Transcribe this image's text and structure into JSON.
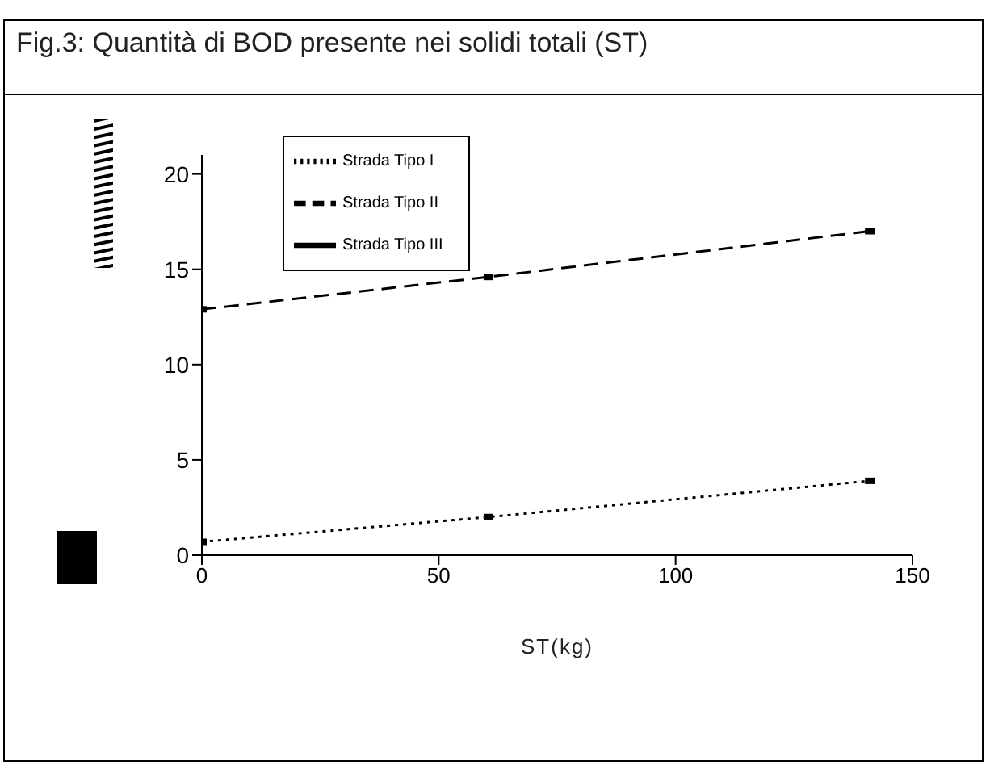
{
  "chart_data": {
    "type": "line",
    "title": "Fig.3: Quantità di BOD presente nei solidi totali (ST)",
    "xlabel": "ST(kg)",
    "x": [
      0,
      60.5,
      141
    ],
    "series": [
      {
        "name": "Strada Tipo I",
        "color": "#000000",
        "line_style": "dotted",
        "values": [
          0.7,
          2.0,
          3.9
        ]
      },
      {
        "name": "Strada Tipo II",
        "color": "#000000",
        "line_style": "dashed",
        "values": [
          12.9,
          14.6,
          17.0
        ]
      },
      {
        "name": "Strada Tipo III",
        "color": "#000000",
        "line_style": "solid",
        "values": [
          null,
          null,
          null
        ]
      }
    ],
    "xlim": [
      0,
      150
    ],
    "xticks": [
      0,
      50,
      100,
      150
    ],
    "ylim": [
      0,
      21
    ],
    "yticks": [
      0,
      5,
      10,
      15,
      20
    ],
    "grid": false,
    "legend": "top left",
    "marker": "square"
  }
}
